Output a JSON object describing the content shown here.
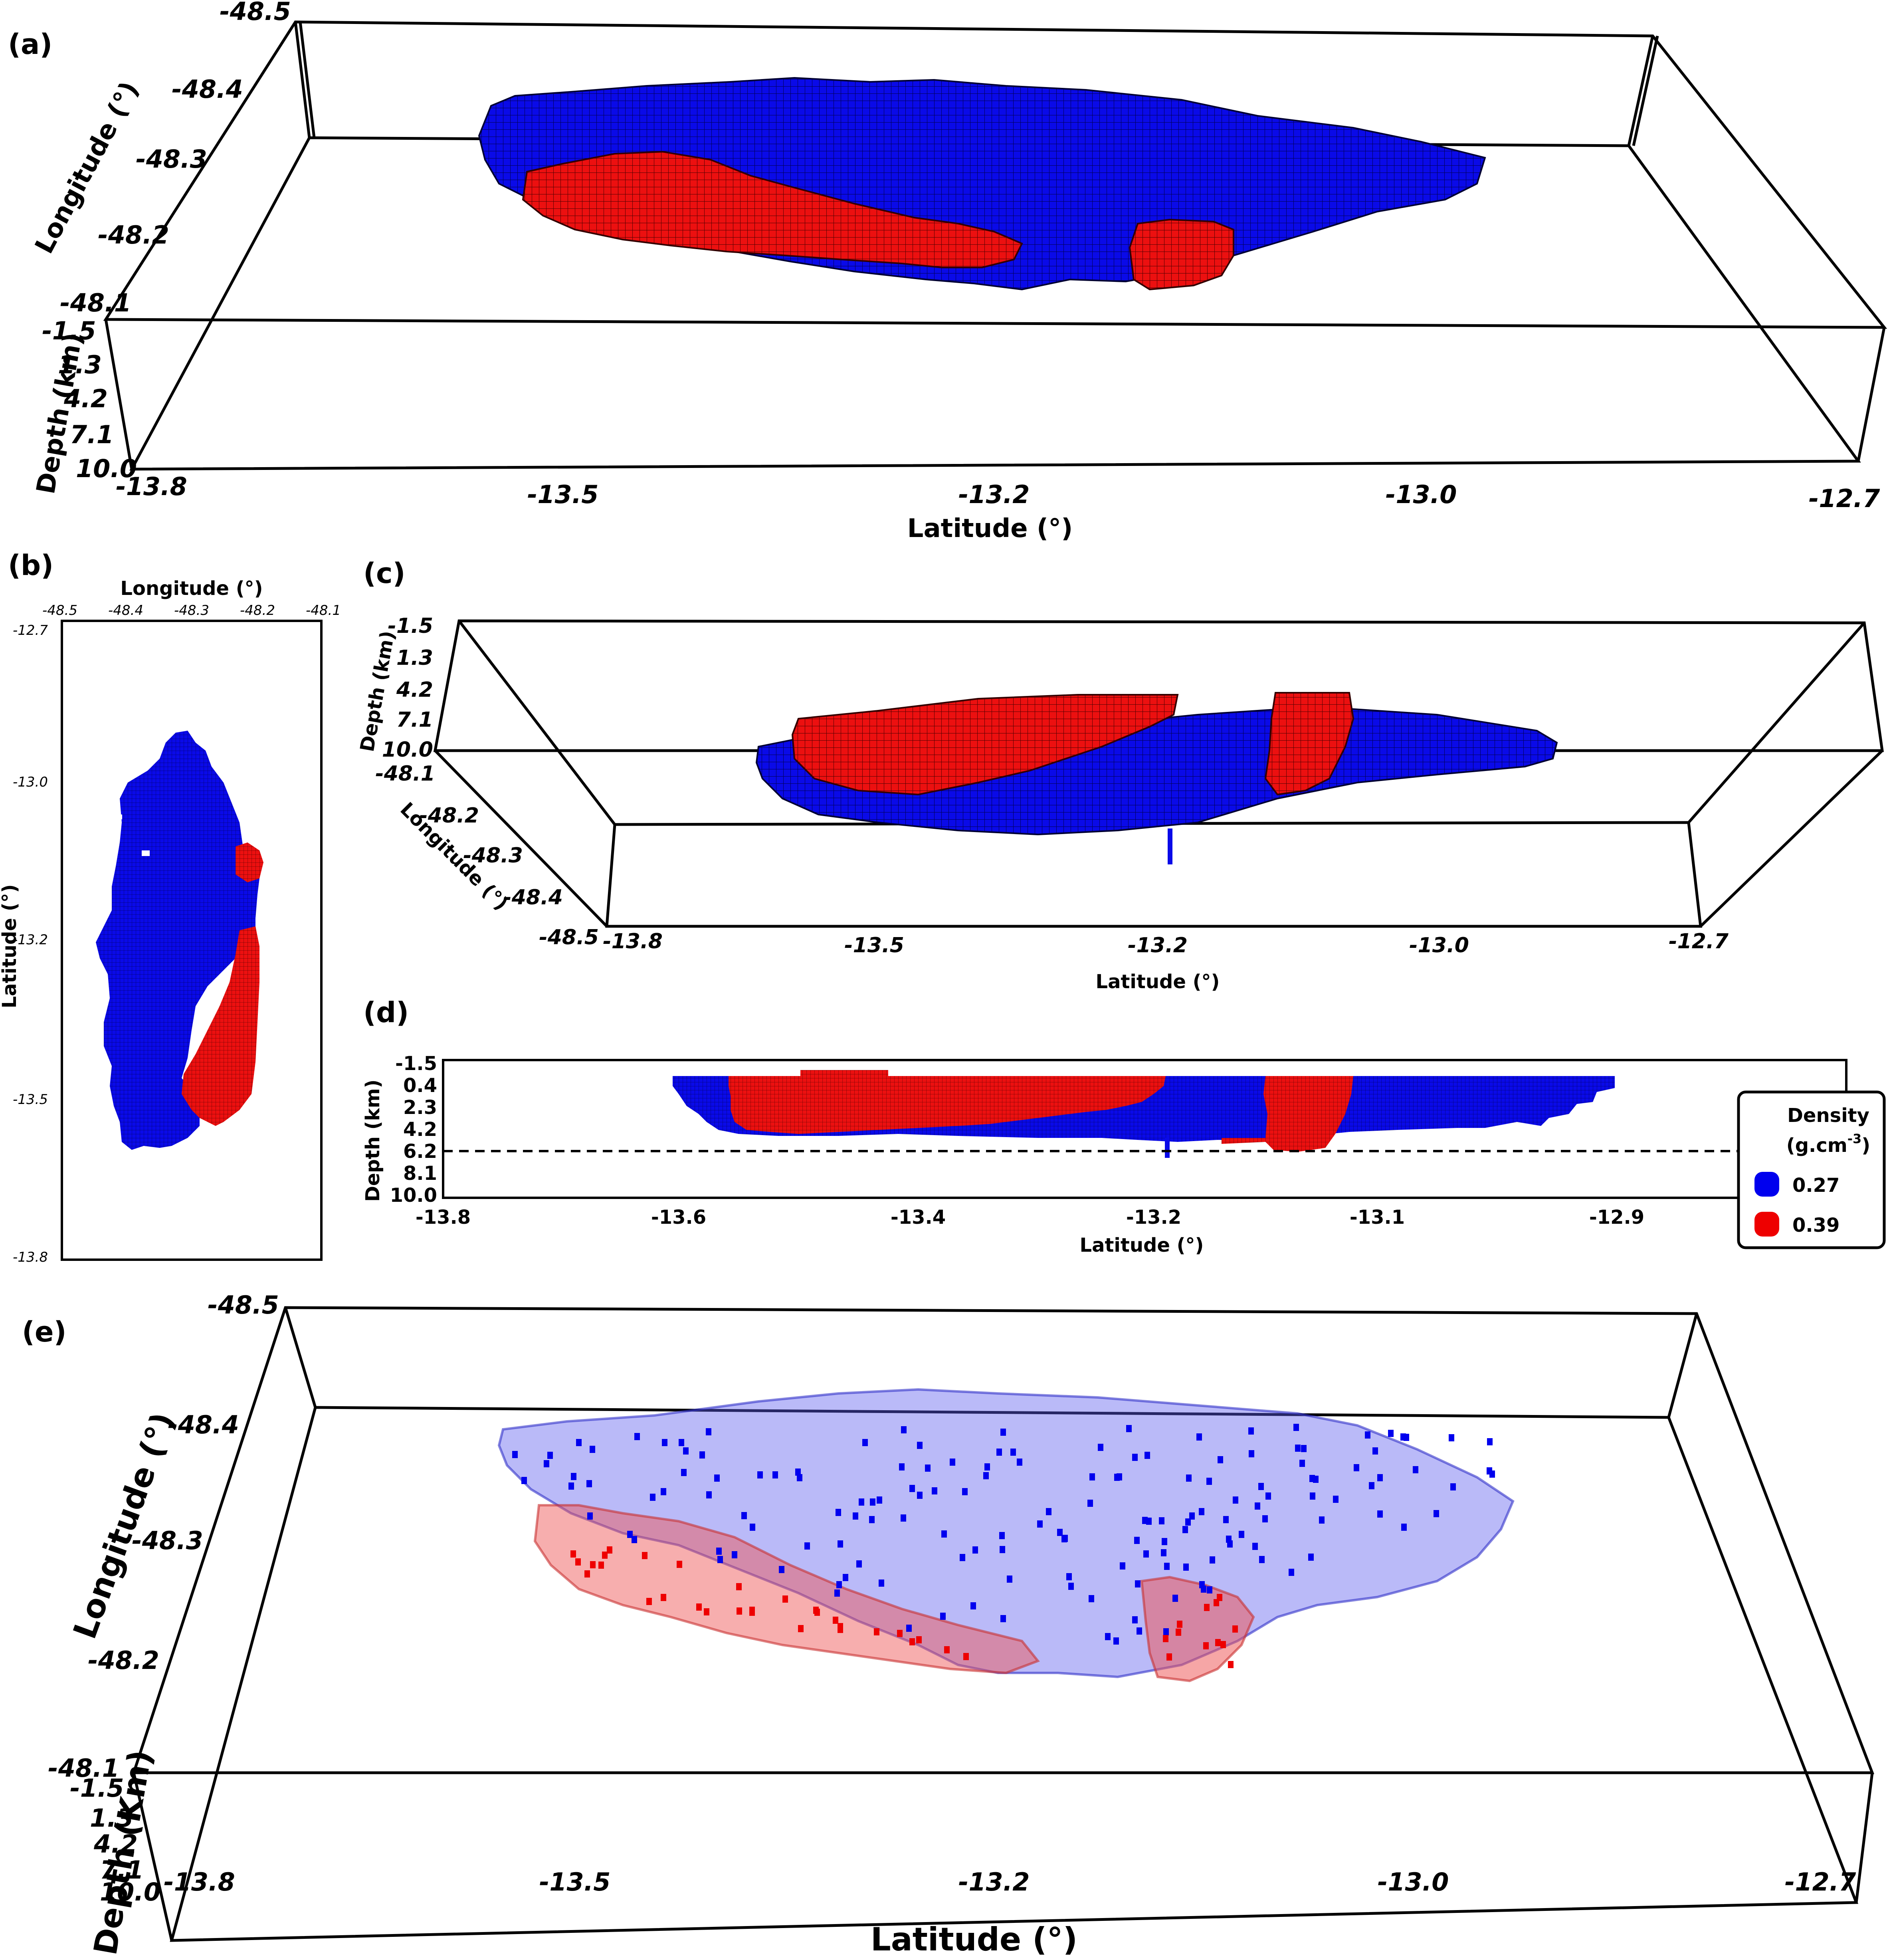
{
  "panels": {
    "a": {
      "label": "(a)",
      "lat_ticks": [
        "-13.8",
        "-13.5",
        "-13.2",
        "-13.0",
        "-12.7"
      ],
      "lon_ticks": [
        "-48.5",
        "-48.4",
        "-48.3",
        "-48.2",
        "-48.1"
      ],
      "depth_ticks": [
        "-1.5",
        "1.3",
        "4.2",
        "7.1",
        "10.0"
      ],
      "xlabel": "Latitude (°)",
      "lon_label": "Longitude (°)",
      "depth_label": "Depth (km)"
    },
    "b": {
      "label": "(b)",
      "lon_ticks": [
        "-48.5",
        "-48.4",
        "-48.3",
        "-48.2",
        "-48.1"
      ],
      "lat_ticks": [
        "-12.7",
        "-13.0",
        "-13.2",
        "-13.5",
        "-13.8"
      ],
      "xlabel": "Longitude (°)",
      "ylabel": "Latitude (°)"
    },
    "c": {
      "label": "(c)",
      "depth_ticks": [
        "-1.5",
        "1.3",
        "4.2",
        "7.1",
        "10.0"
      ],
      "lon_ticks": [
        "-48.1",
        "-48.2",
        "-48.3",
        "-48.4",
        "-48.5"
      ],
      "lat_ticks": [
        "-13.8",
        "-13.5",
        "-13.2",
        "-13.0",
        "-12.7"
      ],
      "xlabel": "Latitude (°)",
      "depth_label": "Depth (km)",
      "lon_label": "Longitude (°)"
    },
    "d": {
      "label": "(d)",
      "depth_ticks": [
        "-1.5",
        "0.4",
        "2.3",
        "4.2",
        "6.2",
        "8.1",
        "10.0"
      ],
      "lat_ticks": [
        "-13.8",
        "-13.6",
        "-13.4",
        "-13.2",
        "-13.1",
        "-12.9"
      ],
      "xlabel": "Latitude (°)",
      "ylabel": "Depth (km)"
    },
    "e": {
      "label": "(e)",
      "lat_ticks": [
        "-13.8",
        "-13.5",
        "-13.2",
        "-13.0",
        "-12.7"
      ],
      "lon_ticks": [
        "-48.5",
        "-48.4",
        "-48.3",
        "-48.2",
        "-48.1"
      ],
      "depth_ticks": [
        "-1.5",
        "1.3",
        "4.2",
        "7.1",
        "10.0"
      ],
      "xlabel": "Latitude (°)",
      "lon_label": "Longitude (°)",
      "depth_label": "Depth (Km)"
    }
  },
  "legend": {
    "title_line1": "Density",
    "title_line2": "(g.cm",
    "title_sup": "-3",
    "title_close": ")",
    "items": [
      {
        "label": "0.27",
        "color": "#0000ee"
      },
      {
        "label": "0.39",
        "color": "#ee0000"
      }
    ]
  },
  "colors": {
    "low_density": "#0000ee",
    "high_density": "#ee0000",
    "edge": "#000000"
  }
}
